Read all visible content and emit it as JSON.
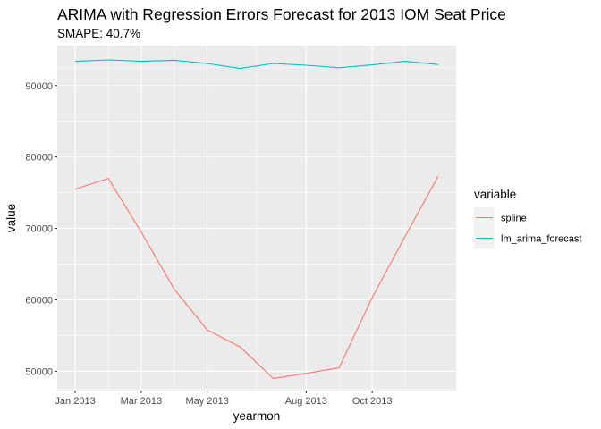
{
  "chart_data": {
    "type": "line",
    "title": "ARIMA with Regression Errors Forecast for 2013 IOM Seat Price",
    "subtitle": "SMAPE: 40.7%",
    "xlabel": "yearmon",
    "ylabel": "value",
    "x": [
      "2013-01",
      "2013-02",
      "2013-03",
      "2013-04",
      "2013-05",
      "2013-06",
      "2013-07",
      "2013-08",
      "2013-09",
      "2013-10",
      "2013-11",
      "2013-12"
    ],
    "x_ticks": [
      {
        "x": "2013-01",
        "label": "Jan 2013"
      },
      {
        "x": "2013-03",
        "label": "Mar 2013"
      },
      {
        "x": "2013-05",
        "label": "May 2013"
      },
      {
        "x": "2013-08",
        "label": "Aug 2013"
      },
      {
        "x": "2013-10",
        "label": "Oct 2013"
      }
    ],
    "y_ticks": [
      50000,
      60000,
      70000,
      80000,
      90000
    ],
    "ylim": [
      47300,
      95600
    ],
    "grid": true,
    "legend": {
      "title": "variable",
      "position": "right"
    },
    "series": [
      {
        "name": "spline",
        "color": "#F8766D",
        "values": [
          75500,
          77000,
          69500,
          61500,
          55800,
          53400,
          49000,
          49700,
          50500,
          60300,
          68900,
          77300
        ]
      },
      {
        "name": "lm_arima_forecast",
        "color": "#00BFC4",
        "values": [
          93400,
          93600,
          93400,
          93550,
          93100,
          92400,
          93100,
          92850,
          92500,
          92900,
          93400,
          92950
        ]
      }
    ]
  }
}
